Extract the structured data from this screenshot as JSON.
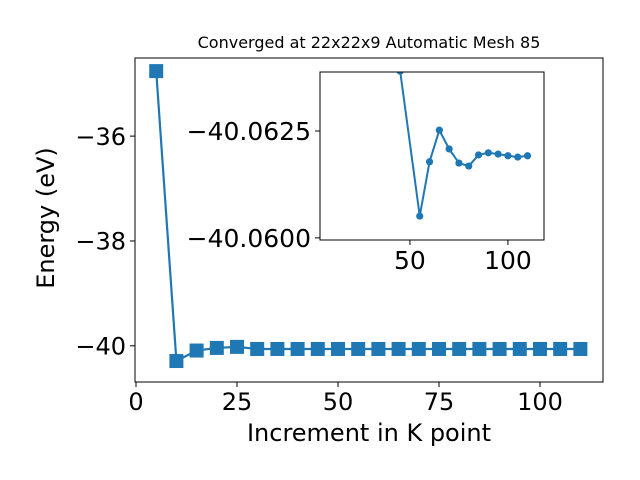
{
  "chart_data": [
    {
      "type": "line",
      "title": "Converged at 22x22x9 Automatic Mesh 85",
      "xlabel": "Increment in K point",
      "ylabel": "Energy (eV)",
      "x": [
        5,
        10,
        15,
        20,
        25,
        30,
        35,
        40,
        45,
        50,
        55,
        60,
        65,
        70,
        75,
        80,
        85,
        90,
        95,
        100,
        105,
        110
      ],
      "series": [
        {
          "color": "#1f77b4",
          "marker": "square",
          "values": [
            -34.76,
            -40.29,
            -40.09,
            -40.04,
            -40.02,
            -40.06,
            -40.06,
            -40.06,
            -40.06,
            -40.06,
            -40.06,
            -40.06,
            -40.06,
            -40.06,
            -40.06,
            -40.06,
            -40.06,
            -40.06,
            -40.06,
            -40.06,
            -40.06,
            -40.06
          ]
        }
      ],
      "xlim": [
        -0.25,
        115.6
      ],
      "xticks": [
        0,
        25,
        50,
        75,
        100
      ],
      "ylim": [
        -40.69,
        -34.51
      ],
      "yticks": [
        {
          "value": -36,
          "label": "−36"
        },
        {
          "value": -38,
          "label": "−38"
        },
        {
          "value": -40,
          "label": "−40"
        }
      ]
    },
    {
      "type": "line",
      "x": [
        45,
        55,
        60,
        65,
        70,
        75,
        80,
        85,
        90,
        95,
        100,
        105,
        110
      ],
      "series": [
        {
          "color": "#1f77b4",
          "marker": "circle",
          "values": [
            -40.0639,
            -40.06051,
            -40.06178,
            -40.06252,
            -40.06208,
            -40.06175,
            -40.06168,
            -40.06194,
            -40.06199,
            -40.06196,
            -40.06192,
            -40.06189,
            -40.06192
          ]
        }
      ],
      "xlim": [
        4.1,
        118.4
      ],
      "xticks": [
        50,
        100
      ],
      "ylim": [
        -40.05995,
        -40.06388
      ],
      "yticks": [
        {
          "value": -40.0625,
          "label": "−40.0625"
        },
        {
          "value": -40.06,
          "label": "−40.0600"
        }
      ]
    }
  ]
}
